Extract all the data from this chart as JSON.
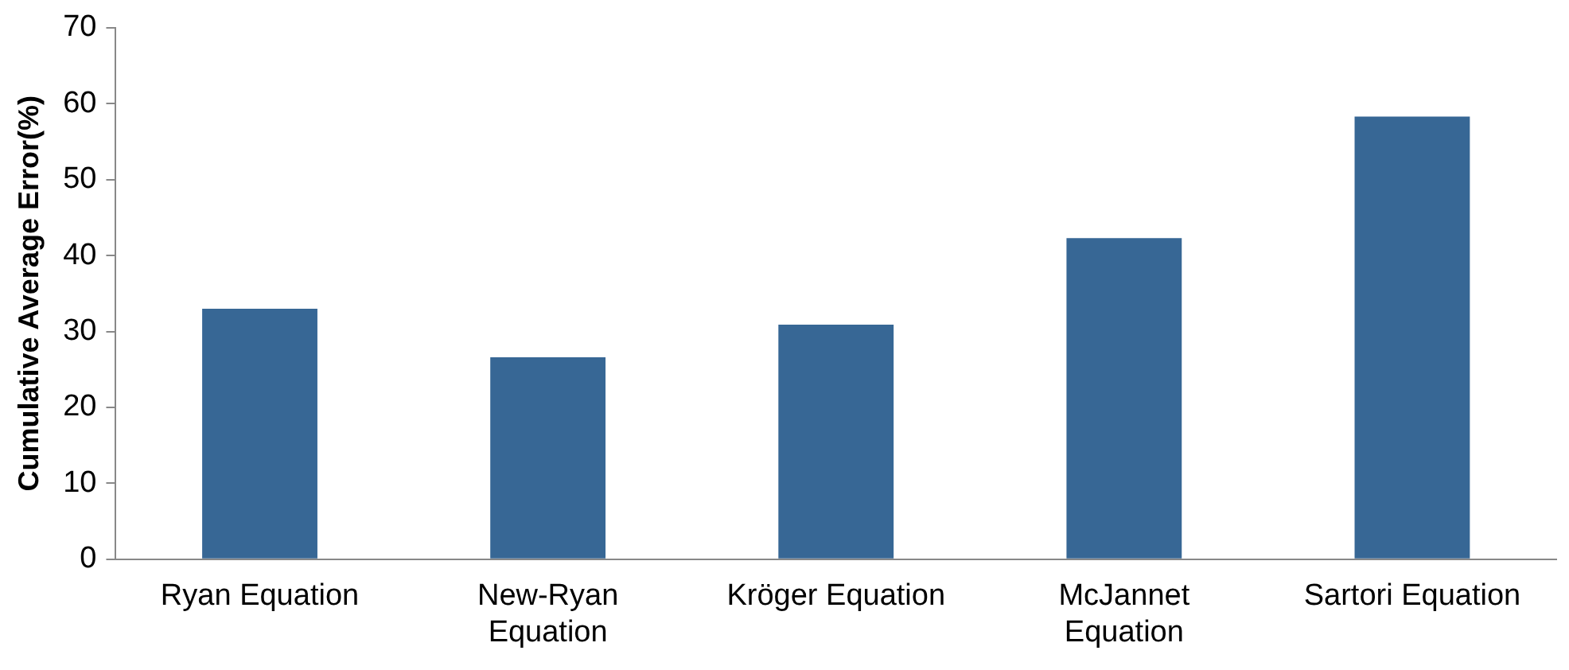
{
  "chart_data": {
    "type": "bar",
    "ylabel": "Cumulative Average Error(%)",
    "categories": [
      "Ryan Equation",
      "New-Ryan Equation",
      "Kröger Equation",
      "McJannet Equation",
      "Sartori Equation"
    ],
    "values": [
      33.0,
      26.6,
      30.9,
      42.3,
      58.3
    ],
    "color": "#376795",
    "ylim": [
      0,
      70
    ],
    "yticks": [
      0,
      10,
      20,
      30,
      40,
      50,
      60,
      70
    ],
    "grid": false,
    "legend": false
  }
}
